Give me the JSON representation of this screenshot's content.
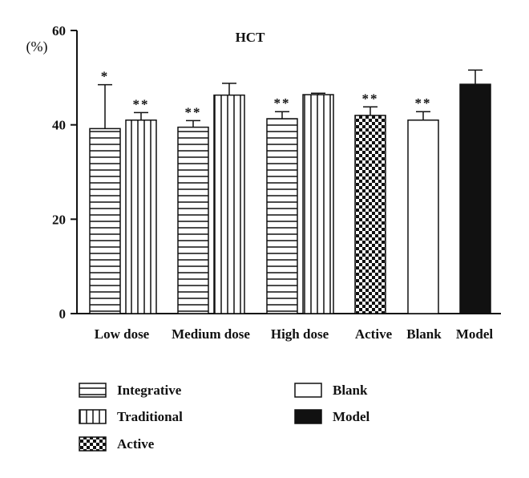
{
  "chart_data": {
    "type": "bar",
    "title": "HCT",
    "ylabel": "(%)",
    "xlabel": "",
    "ylim": [
      0,
      60
    ],
    "yticks": [
      "0",
      "20",
      "40",
      "60"
    ],
    "grid": false,
    "legend_position": "bottom",
    "categories": [
      "Low dose",
      "Medium dose",
      "High dose",
      "Active",
      "Blank",
      "Model"
    ],
    "bars": [
      {
        "category": "Low dose",
        "series": "Integrative",
        "value": 39.2,
        "error": 9.3,
        "marker": "*"
      },
      {
        "category": "Low dose",
        "series": "Traditional",
        "value": 41.0,
        "error": 1.6,
        "marker": "**"
      },
      {
        "category": "Medium dose",
        "series": "Integrative",
        "value": 39.5,
        "error": 1.4,
        "marker": "**"
      },
      {
        "category": "Medium dose",
        "series": "Traditional",
        "value": 46.3,
        "error": 2.5,
        "marker": ""
      },
      {
        "category": "High dose",
        "series": "Integrative",
        "value": 41.3,
        "error": 1.5,
        "marker": "**"
      },
      {
        "category": "High dose",
        "series": "Traditional",
        "value": 46.4,
        "error": 0.3,
        "marker": ""
      },
      {
        "category": "Active",
        "series": "Active",
        "value": 42.0,
        "error": 1.8,
        "marker": "**"
      },
      {
        "category": "Blank",
        "series": "Blank",
        "value": 41.0,
        "error": 1.8,
        "marker": "**"
      },
      {
        "category": "Model",
        "series": "Model",
        "value": 48.6,
        "error": 3.0,
        "marker": ""
      }
    ],
    "legend": [
      {
        "name": "Integrative",
        "pattern": "horizontal-lines"
      },
      {
        "name": "Traditional",
        "pattern": "vertical-lines"
      },
      {
        "name": "Active",
        "pattern": "checkerboard"
      },
      {
        "name": "Blank",
        "pattern": "white"
      },
      {
        "name": "Model",
        "pattern": "black"
      }
    ],
    "colors": {
      "ink": "#111111",
      "fill_blank": "#ffffff",
      "fill_model": "#111111"
    }
  }
}
